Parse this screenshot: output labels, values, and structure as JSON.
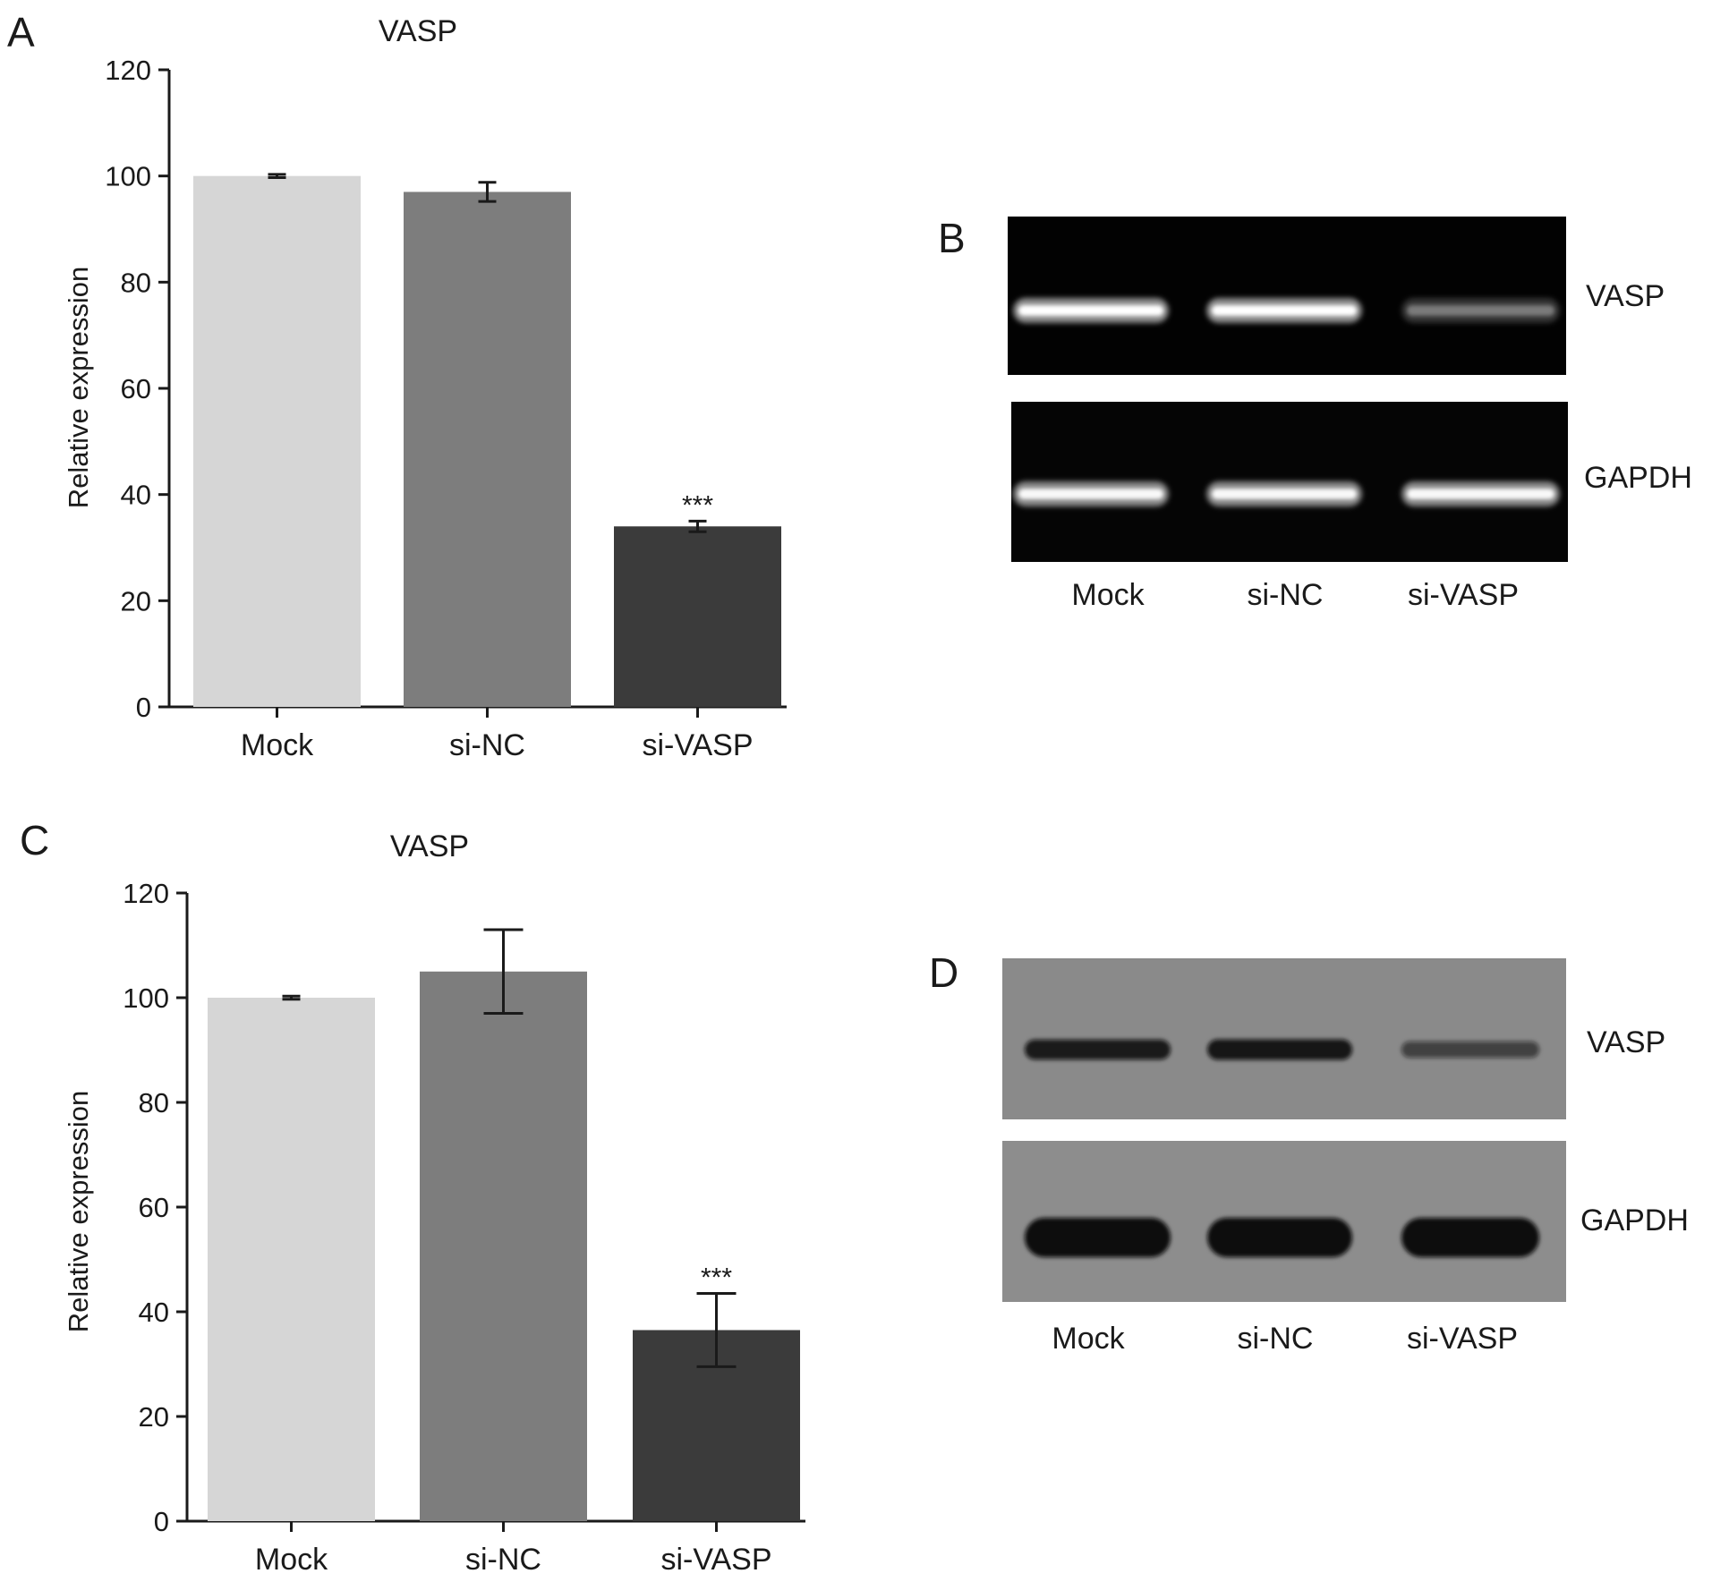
{
  "panels": {
    "A": {
      "letter": "A",
      "chart_data": {
        "type": "bar",
        "title": "VASP",
        "ylabel": "Relative expression",
        "xlabel": "",
        "categories": [
          "Mock",
          "si-NC",
          "si-VASP"
        ],
        "values": [
          100,
          97,
          34
        ],
        "errors": [
          0.3,
          1.8,
          1.0
        ],
        "significance": [
          "",
          "",
          "***"
        ],
        "bar_colors": [
          "#d6d6d6",
          "#7d7d7d",
          "#3b3b3b"
        ],
        "ylim": [
          0,
          120
        ],
        "yticks": [
          "0",
          "20",
          "40",
          "60",
          "80",
          "100",
          "120"
        ],
        "grid": false
      }
    },
    "B": {
      "letter": "B",
      "rows": [
        "VASP",
        "GAPDH"
      ],
      "lanes": [
        "Mock",
        "si-NC",
        "si-VASP"
      ],
      "band_intensity": [
        [
          1.0,
          1.0,
          0.35
        ],
        [
          0.95,
          0.95,
          0.95
        ]
      ]
    },
    "C": {
      "letter": "C",
      "chart_data": {
        "type": "bar",
        "title": "VASP",
        "ylabel": "Relative expression",
        "xlabel": "",
        "categories": [
          "Mock",
          "si-NC",
          "si-VASP"
        ],
        "values": [
          100,
          105,
          36.5
        ],
        "errors": [
          0.3,
          8,
          7
        ],
        "significance": [
          "",
          "",
          "***"
        ],
        "bar_colors": [
          "#d6d6d6",
          "#7d7d7d",
          "#3b3b3b"
        ],
        "ylim": [
          0,
          120
        ],
        "yticks": [
          "0",
          "20",
          "40",
          "60",
          "80",
          "100",
          "120"
        ],
        "grid": false
      }
    },
    "D": {
      "letter": "D",
      "rows": [
        "VASP",
        "GAPDH"
      ],
      "lanes": [
        "Mock",
        "si-NC",
        "si-VASP"
      ],
      "band_intensity": [
        [
          0.85,
          0.9,
          0.4
        ],
        [
          1.0,
          1.0,
          1.0
        ]
      ]
    }
  }
}
